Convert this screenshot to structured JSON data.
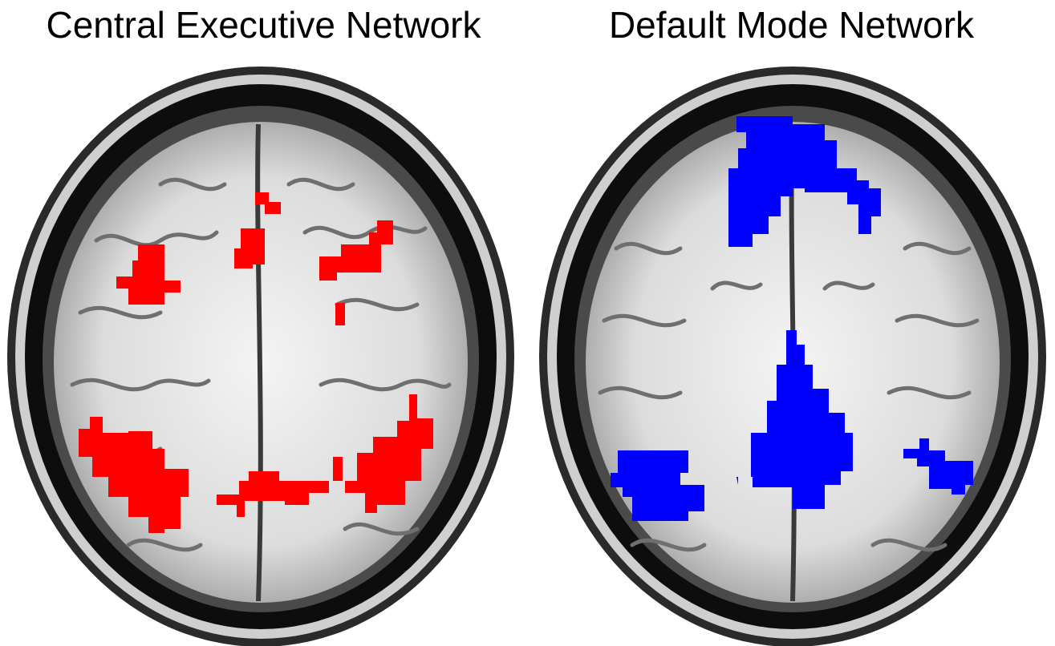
{
  "panels": [
    {
      "title": "Central Executive Network",
      "overlay_color": "#ff0000"
    },
    {
      "title": "Default Mode Network",
      "overlay_color": "#0000ff"
    }
  ]
}
